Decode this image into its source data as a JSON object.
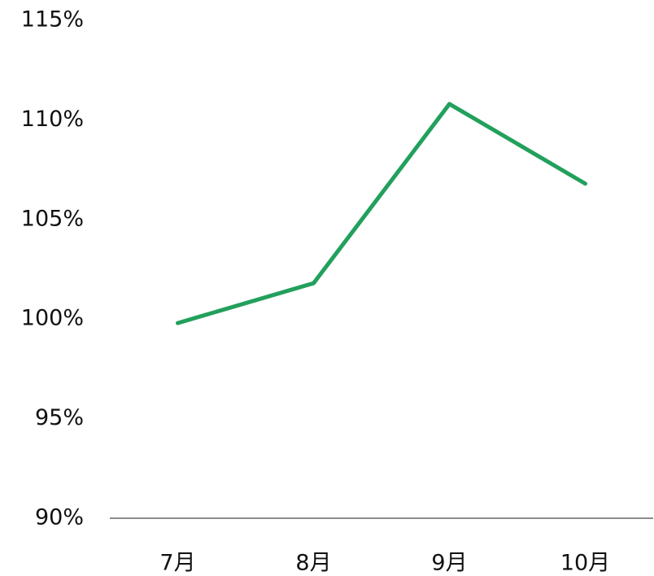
{
  "chart_data": {
    "type": "line",
    "categories": [
      "7月",
      "8月",
      "9月",
      "10月"
    ],
    "values": [
      99.8,
      101.8,
      110.8,
      106.8
    ],
    "color": "#22a05c",
    "ylim": [
      90,
      115
    ],
    "yticks": [
      {
        "value": 90,
        "label": "90%"
      },
      {
        "value": 95,
        "label": "95%"
      },
      {
        "value": 100,
        "label": "100%"
      },
      {
        "value": 105,
        "label": "105%"
      },
      {
        "value": 110,
        "label": "110%"
      },
      {
        "value": 115,
        "label": "115%"
      }
    ],
    "grid": false
  }
}
